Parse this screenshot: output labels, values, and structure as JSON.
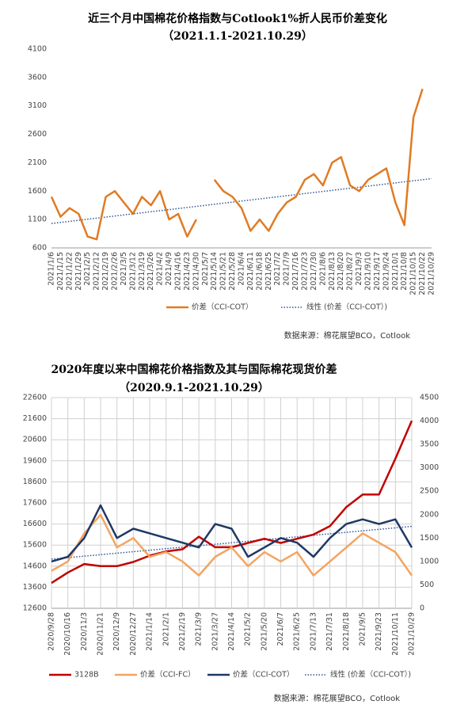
{
  "chart_data": [
    {
      "type": "line",
      "title": "近三个月中国棉花价格指数与Cotlook1%折人民币价差变化",
      "subtitle": "（2021.1.1-2021.10.29）",
      "categories": [
        "2021/1/6",
        "2021/1/15",
        "2021/1/22",
        "2021/1/29",
        "2021/2/5",
        "2021/2/12",
        "2021/2/19",
        "2021/2/26",
        "2021/3/5",
        "2021/3/12",
        "2021/3/19",
        "2021/3/26",
        "2021/4/2",
        "2021/4/9",
        "2021/4/16",
        "2021/4/23",
        "2021/4/30",
        "2021/5/7",
        "2021/5/14",
        "2021/5/21",
        "2021/5/28",
        "2021/6/4",
        "2021/6/11",
        "2021/6/18",
        "2021/6/25",
        "2021/7/2",
        "2021/7/9",
        "2021/7/16",
        "2021/7/23",
        "2021/7/30",
        "2021/8/6",
        "2021/8/13",
        "2021/8/20",
        "2021/8/27",
        "2021/9/3",
        "2021/9/10",
        "2021/9/17",
        "2021/9/24",
        "2021/10/1",
        "2021/10/8",
        "2021/10/15",
        "2021/10/22",
        "2021/10/29"
      ],
      "series": [
        {
          "name": "价差（CCI-COT）",
          "color": "#e07b24",
          "values": [
            1500,
            1150,
            1300,
            1200,
            800,
            750,
            1500,
            1600,
            1400,
            1200,
            1500,
            1350,
            1600,
            1100,
            1200,
            800,
            1100,
            null,
            1800,
            1600,
            1500,
            1300,
            900,
            1100,
            900,
            1200,
            1400,
            1500,
            1800,
            1900,
            1700,
            2100,
            2200,
            1700,
            1600,
            1800,
            1900,
            2000,
            1400,
            1000,
            2900,
            3400,
            null
          ]
        }
      ],
      "trend": {
        "name": "线性 (价差（CCI-COT）)",
        "color": "#2f5597",
        "values": [
          1030,
          1820
        ]
      },
      "ylim": [
        600,
        4100
      ],
      "yticks": [
        600,
        1100,
        1600,
        2100,
        2600,
        3100,
        3600,
        4100
      ],
      "grid": false,
      "source": "数据来源：棉花展望BCO，Cotlook"
    },
    {
      "type": "line",
      "title": "2020年度以来中国棉花价格指数及其与国际棉花现货价差",
      "subtitle": "（2020.9.1-2021.10.29）",
      "categories": [
        "2020/9/28",
        "2020/10/16",
        "2020/11/3",
        "2020/11/21",
        "2020/12/9",
        "2020/12/27",
        "2021/1/14",
        "2021/2/1",
        "2021/2/19",
        "2021/3/9",
        "2021/3/27",
        "2021/4/14",
        "2021/5/2",
        "2021/5/20",
        "2021/6/7",
        "2021/6/25",
        "2021/7/13",
        "2021/7/31",
        "2021/8/18",
        "2021/9/5",
        "2021/9/23",
        "2021/10/11",
        "2021/10/29"
      ],
      "series": [
        {
          "name": "3128B",
          "color": "#c00000",
          "values": [
            13800,
            14300,
            14700,
            14600,
            14600,
            14800,
            15100,
            15300,
            15400,
            16000,
            15500,
            15500,
            15700,
            15900,
            15700,
            15900,
            16100,
            16500,
            17400,
            18000,
            18000,
            19700,
            21500
          ]
        },
        {
          "name": "价差（CCI-FC）",
          "color": "#f4a460",
          "axis": "y2",
          "values": [
            800,
            1000,
            1600,
            2000,
            1300,
            1500,
            1100,
            1200,
            1000,
            700,
            1100,
            1300,
            900,
            1200,
            1000,
            1200,
            700,
            1000,
            1300,
            1600,
            1400,
            1200,
            700
          ]
        },
        {
          "name": "价差（CCI-COT）",
          "color": "#1f3864",
          "axis": "y2",
          "values": [
            1000,
            1100,
            1500,
            2200,
            1500,
            1700,
            1600,
            1500,
            1400,
            1300,
            1800,
            1700,
            1100,
            1300,
            1500,
            1400,
            1100,
            1500,
            1800,
            1900,
            1800,
            1900,
            1300
          ]
        }
      ],
      "trend": {
        "name": "线性 (价差（CCI-COT）)",
        "color": "#2f5597",
        "axis": "y2",
        "values": [
          1050,
          1750
        ]
      },
      "ylim": [
        12600,
        22600
      ],
      "yticks": [
        12600,
        13600,
        14600,
        15600,
        16600,
        17600,
        18600,
        19600,
        20600,
        21600,
        22600
      ],
      "y2lim": [
        0,
        4500
      ],
      "y2ticks": [
        0,
        500,
        1000,
        1500,
        2000,
        2500,
        3000,
        3500,
        4000,
        4500
      ],
      "grid": true,
      "source": "数据来源：棉花展望BCO，Cotlook"
    }
  ]
}
